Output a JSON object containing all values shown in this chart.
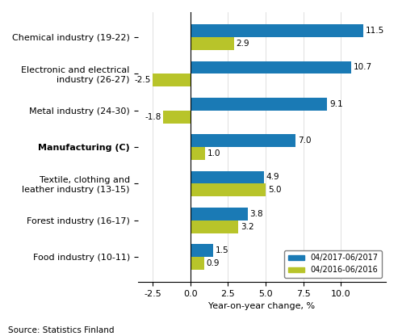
{
  "categories": [
    "Chemical industry (19-22)",
    "Electronic and electrical\nindustry (26-27)",
    "Metal industry (24-30)",
    "Manufacturing (C)",
    "Textile, clothing and\nleather industry (13-15)",
    "Forest industry (16-17)",
    "Food industry (10-11)"
  ],
  "series_2017": [
    11.5,
    10.7,
    9.1,
    7.0,
    4.9,
    3.8,
    1.5
  ],
  "series_2016": [
    2.9,
    -2.5,
    -1.8,
    1.0,
    5.0,
    3.2,
    0.9
  ],
  "color_2017": "#1a7ab5",
  "color_2016": "#b8c42a",
  "legend_2017": "04/2017-06/2017",
  "legend_2016": "04/2016-06/2016",
  "xlabel": "Year-on-year change, %",
  "source": "Source: Statistics Finland",
  "xlim": [
    -3.5,
    13.0
  ],
  "xticks": [
    -2.5,
    0.0,
    2.5,
    5.0,
    7.5,
    10.0
  ],
  "bar_height": 0.35,
  "label_fontsize": 8.0,
  "tick_fontsize": 8.0,
  "value_fontsize": 7.5
}
